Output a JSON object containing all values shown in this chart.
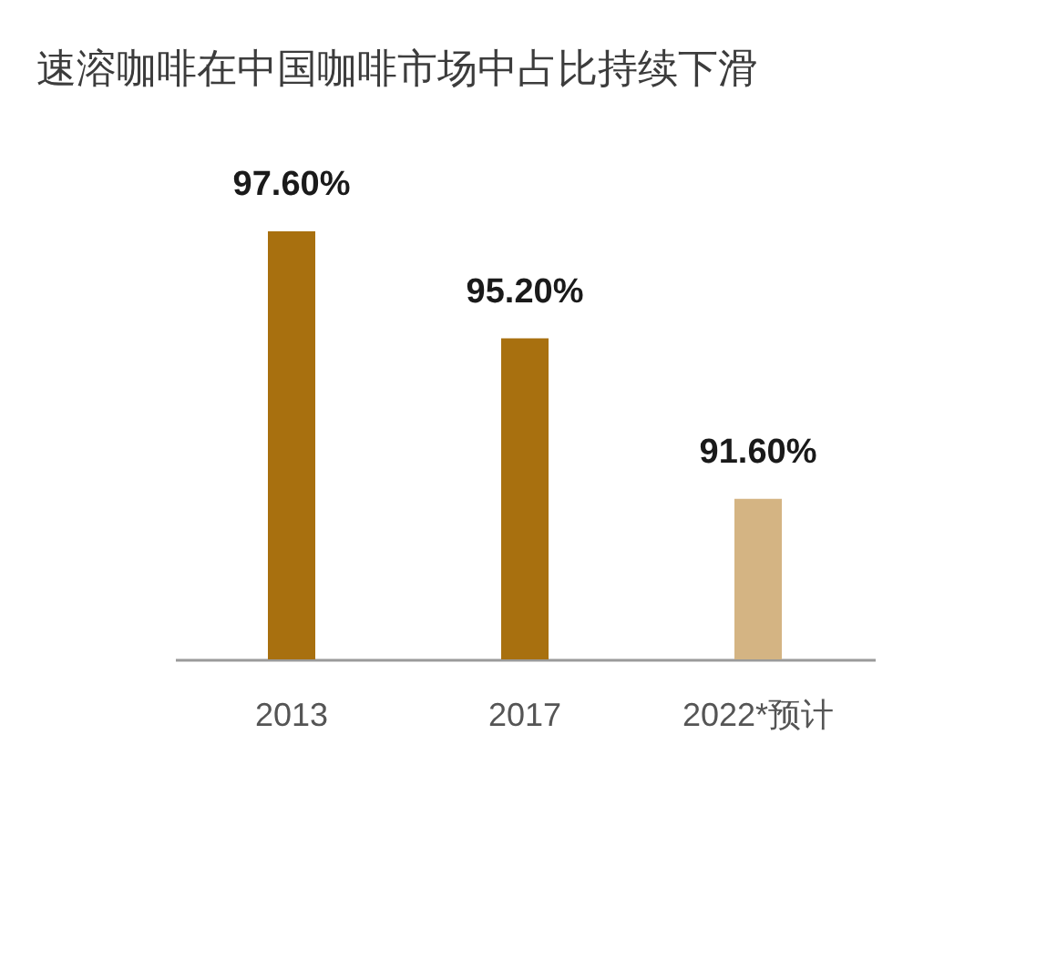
{
  "chart_data": {
    "type": "bar",
    "title": "速溶咖啡在中国咖啡市场中占比持续下滑",
    "categories": [
      "2013",
      "2017",
      "2022*预计"
    ],
    "values": [
      97.6,
      95.2,
      91.6
    ],
    "colors": [
      "#a8700f",
      "#a8700f",
      "#d4b483"
    ],
    "ylim": [
      88,
      97.6
    ],
    "tick_labels": "x",
    "value_labels": [
      "97.60%",
      "95.20%",
      "91.60%"
    ]
  }
}
